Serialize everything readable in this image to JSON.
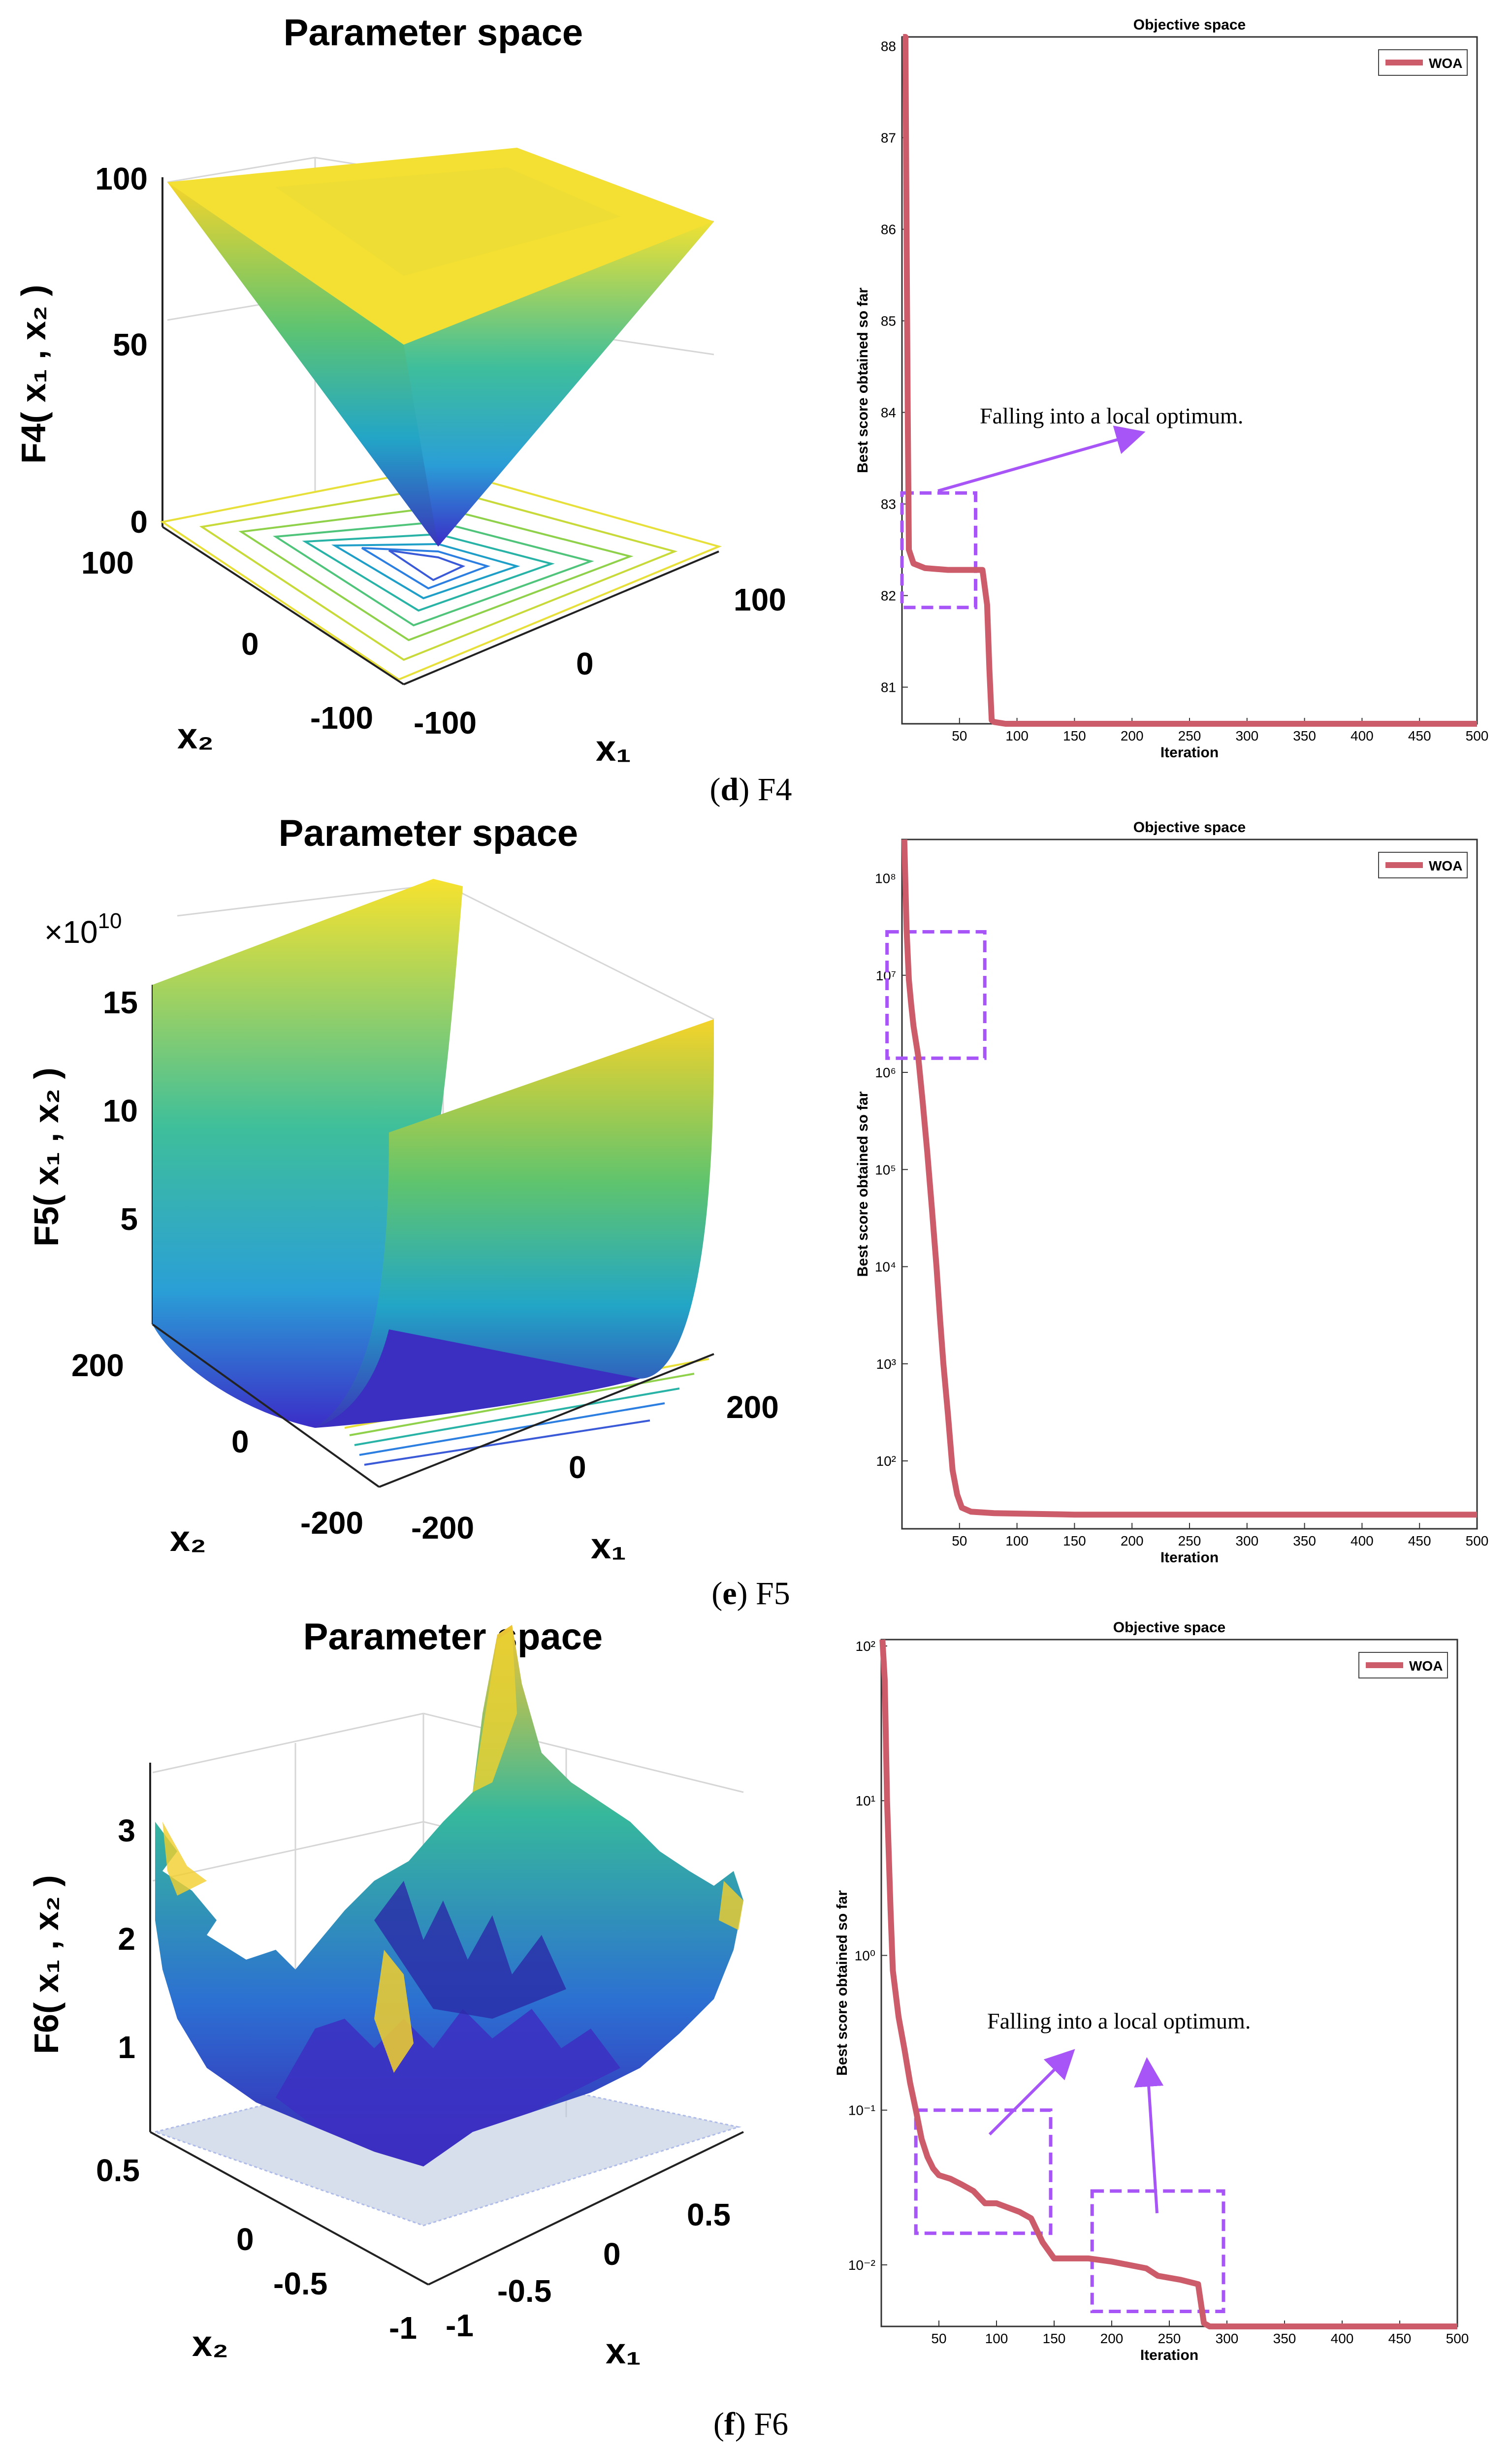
{
  "colors": {
    "woa_line": "#cd5c6a",
    "highlight_box": "#a855f7",
    "axis": "#222222",
    "surface_low": "#3b2dc8",
    "surface_mid": "#2bb3c0",
    "surface_high": "#f7e22e"
  },
  "panels": [
    {
      "id": "d",
      "caption": {
        "letter": "d",
        "label": "F4"
      },
      "surface": {
        "title": "Parameter space",
        "zlabel": "F4( x₁ , x₂ )",
        "zticks": [
          "0",
          "50",
          "100"
        ],
        "x1label": "x₁",
        "x1ticks": [
          "-100",
          "0",
          "100"
        ],
        "x2label": "x₂",
        "x2ticks": [
          "-100",
          "0",
          "100"
        ]
      },
      "convergence": {
        "title": "Objective space",
        "xlabel": "Iteration",
        "ylabel": "Best score obtained so far",
        "legend": "WOA",
        "annotation": "Falling into a local optimum."
      }
    },
    {
      "id": "e",
      "caption": {
        "letter": "e",
        "label": "F5"
      },
      "surface": {
        "title": "Parameter space",
        "zlabel": "F5( x₁ , x₂ )",
        "zmultiplier": "×10",
        "zmultiplier_exp": "10",
        "zticks": [
          "5",
          "10",
          "15"
        ],
        "x1label": "x₁",
        "x1ticks": [
          "-200",
          "0",
          "200"
        ],
        "x2label": "x₂",
        "x2ticks": [
          "-200",
          "0",
          "200"
        ]
      },
      "convergence": {
        "title": "Objective space",
        "xlabel": "Iteration",
        "ylabel": "Best score obtained so far",
        "legend": "WOA",
        "annotation": ""
      }
    },
    {
      "id": "f",
      "caption": {
        "letter": "f",
        "label": "F6"
      },
      "surface": {
        "title": "Parameter space",
        "zlabel": "F6( x₁ , x₂ )",
        "zticks": [
          "1",
          "2",
          "3"
        ],
        "x1label": "x₁",
        "x1ticks": [
          "-1",
          "-0.5",
          "0",
          "0.5"
        ],
        "x2label": "x₂",
        "x2ticks": [
          "-1",
          "-0.5",
          "0",
          "0.5"
        ]
      },
      "convergence": {
        "title": "Objective space",
        "xlabel": "Iteration",
        "ylabel": "Best score obtained so far",
        "legend": "WOA",
        "annotation": "Falling into a local optimum."
      }
    }
  ],
  "chart_data": [
    {
      "type": "line",
      "panel": "d",
      "title": "Objective space",
      "xlabel": "Iteration",
      "ylabel": "Best score obtained so far",
      "yscale": "linear",
      "xlim": [
        0,
        500
      ],
      "ylim": [
        80.6,
        88.1
      ],
      "xticks": [
        50,
        100,
        150,
        200,
        250,
        300,
        350,
        400,
        450,
        500
      ],
      "yticks": [
        81,
        82,
        83,
        84,
        85,
        86,
        87,
        88
      ],
      "series": [
        {
          "name": "WOA",
          "x": [
            1,
            3,
            4,
            5,
            6,
            10,
            20,
            40,
            60,
            61,
            70,
            74,
            76,
            78,
            80,
            90,
            150,
            300,
            500
          ],
          "y": [
            88.1,
            88.1,
            86,
            84,
            82.5,
            82.35,
            82.3,
            82.28,
            82.28,
            82.28,
            82.28,
            81.9,
            81.2,
            80.64,
            80.62,
            80.6,
            80.6,
            80.6,
            80.6
          ]
        }
      ],
      "highlight_boxes": [
        {
          "x": [
            0,
            64
          ],
          "y": [
            81.87,
            83.12
          ]
        }
      ]
    },
    {
      "type": "line",
      "panel": "e",
      "title": "Objective space",
      "xlabel": "Iteration",
      "ylabel": "Best score obtained so far",
      "yscale": "log",
      "xlim": [
        0,
        500
      ],
      "ylim": [
        20,
        250000000
      ],
      "xticks": [
        50,
        100,
        150,
        200,
        250,
        300,
        350,
        400,
        450,
        500
      ],
      "yticks": [
        100,
        1000,
        10000,
        100000,
        1000000,
        10000000,
        100000000
      ],
      "series": [
        {
          "name": "WOA",
          "x": [
            2,
            4,
            6,
            8,
            10,
            14,
            18,
            22,
            26,
            30,
            33,
            36,
            40,
            44,
            48,
            52,
            60,
            80,
            150,
            300,
            500
          ],
          "y": [
            250000000,
            30000000,
            9000000,
            5000000,
            3000000,
            1500000,
            500000,
            150000,
            40000,
            10000,
            3000,
            1000,
            300,
            80,
            45,
            33,
            30,
            29,
            28,
            28,
            28
          ]
        }
      ],
      "highlight_boxes": [
        {
          "x": [
            -13,
            72
          ],
          "y": [
            1400000,
            28000000
          ]
        }
      ]
    },
    {
      "type": "line",
      "panel": "f",
      "title": "Objective space",
      "xlabel": "Iteration",
      "ylabel": "Best score obtained so far",
      "yscale": "log",
      "xlim": [
        0,
        500
      ],
      "ylim": [
        0.004,
        110
      ],
      "xticks": [
        50,
        100,
        150,
        200,
        250,
        300,
        350,
        400,
        450,
        500
      ],
      "yticks": [
        0.01,
        0.1,
        1,
        10,
        100
      ],
      "series": [
        {
          "name": "WOA",
          "x": [
            1,
            3,
            5,
            8,
            10,
            15,
            20,
            25,
            30,
            35,
            40,
            45,
            50,
            60,
            70,
            80,
            90,
            100,
            120,
            130,
            140,
            150,
            180,
            200,
            230,
            240,
            260,
            275,
            280,
            285,
            300,
            400,
            500
          ],
          "y": [
            110,
            60,
            10,
            2,
            0.8,
            0.4,
            0.25,
            0.15,
            0.1,
            0.065,
            0.05,
            0.042,
            0.038,
            0.036,
            0.033,
            0.03,
            0.025,
            0.025,
            0.022,
            0.02,
            0.014,
            0.011,
            0.011,
            0.0105,
            0.0095,
            0.0085,
            0.008,
            0.0075,
            0.0042,
            0.004,
            0.004,
            0.004,
            0.004
          ]
        }
      ],
      "highlight_boxes": [
        {
          "x": [
            30,
            147
          ],
          "y": [
            0.016,
            0.1
          ]
        },
        {
          "x": [
            183,
            297
          ],
          "y": [
            0.005,
            0.03
          ]
        }
      ]
    }
  ]
}
